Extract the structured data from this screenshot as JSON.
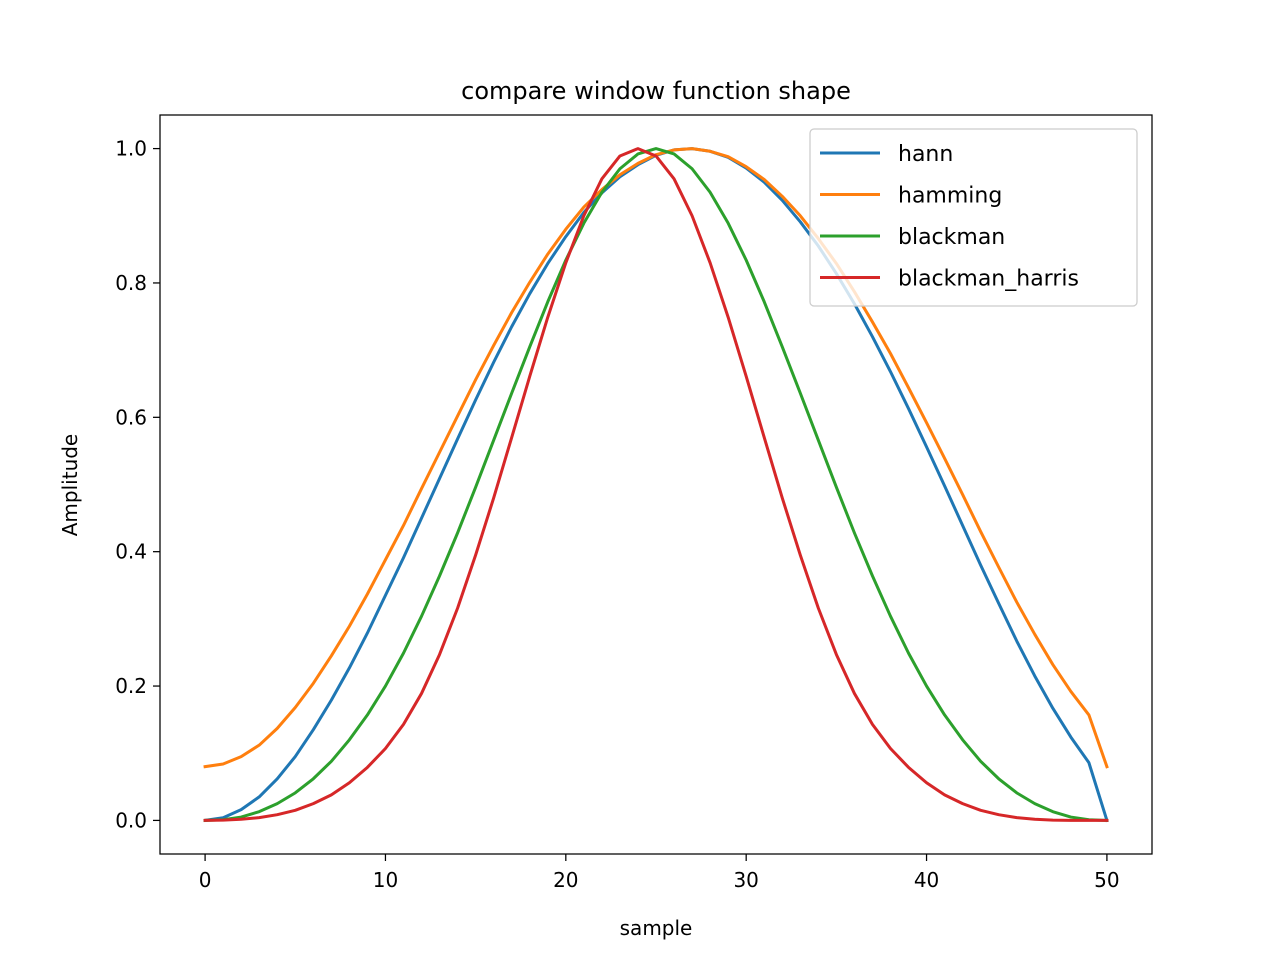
{
  "chart_data": {
    "type": "line",
    "title": "compare window function shape",
    "xlabel": "sample",
    "ylabel": "Amplitude",
    "xlim": [
      -2.5,
      52.5
    ],
    "ylim": [
      -0.05,
      1.05
    ],
    "xticks": [
      0,
      10,
      20,
      30,
      40,
      50
    ],
    "xtick_labels": [
      "0",
      "10",
      "20",
      "30",
      "40",
      "50"
    ],
    "yticks": [
      0.0,
      0.2,
      0.4,
      0.6,
      0.8,
      1.0
    ],
    "ytick_labels": [
      "0.0",
      "0.2",
      "0.4",
      "0.6",
      "0.8",
      "1.0"
    ],
    "grid": false,
    "legend_position": "upper right",
    "x": [
      0,
      1,
      2,
      3,
      4,
      5,
      6,
      7,
      8,
      9,
      10,
      11,
      12,
      13,
      14,
      15,
      16,
      17,
      18,
      19,
      20,
      21,
      22,
      23,
      24,
      25,
      26,
      27,
      28,
      29,
      30,
      31,
      32,
      33,
      34,
      35,
      36,
      37,
      38,
      39,
      40,
      41,
      42,
      43,
      44,
      45,
      46,
      47,
      48,
      49,
      50
    ],
    "series": [
      {
        "name": "hann",
        "color": "#1f77b4",
        "values": [
          0.0,
          0.004,
          0.016,
          0.035,
          0.062,
          0.095,
          0.135,
          0.179,
          0.227,
          0.279,
          0.335,
          0.391,
          0.45,
          0.509,
          0.568,
          0.626,
          0.682,
          0.735,
          0.784,
          0.829,
          0.869,
          0.905,
          0.934,
          0.958,
          0.976,
          0.99,
          0.998,
          1.0,
          0.996,
          0.987,
          0.971,
          0.95,
          0.923,
          0.891,
          0.855,
          0.814,
          0.769,
          0.72,
          0.668,
          0.613,
          0.556,
          0.498,
          0.439,
          0.38,
          0.323,
          0.267,
          0.215,
          0.167,
          0.124,
          0.086,
          0.0
        ]
      },
      {
        "name": "hamming",
        "color": "#ff7f0e",
        "values": [
          0.08,
          0.084,
          0.095,
          0.112,
          0.137,
          0.168,
          0.204,
          0.245,
          0.289,
          0.337,
          0.388,
          0.439,
          0.494,
          0.548,
          0.602,
          0.656,
          0.707,
          0.756,
          0.801,
          0.843,
          0.88,
          0.913,
          0.939,
          0.961,
          0.978,
          0.991,
          0.998,
          1.0,
          0.996,
          0.988,
          0.973,
          0.954,
          0.929,
          0.9,
          0.866,
          0.829,
          0.787,
          0.742,
          0.695,
          0.644,
          0.592,
          0.539,
          0.485,
          0.43,
          0.377,
          0.325,
          0.277,
          0.232,
          0.192,
          0.157,
          0.08
        ]
      },
      {
        "name": "blackman",
        "color": "#2ca02c",
        "values": [
          0.0,
          0.001,
          0.005,
          0.013,
          0.025,
          0.041,
          0.062,
          0.088,
          0.12,
          0.157,
          0.2,
          0.249,
          0.304,
          0.364,
          0.428,
          0.496,
          0.566,
          0.636,
          0.705,
          0.772,
          0.834,
          0.889,
          0.935,
          0.97,
          0.992,
          1.0,
          0.992,
          0.97,
          0.935,
          0.889,
          0.834,
          0.772,
          0.705,
          0.636,
          0.566,
          0.496,
          0.428,
          0.364,
          0.304,
          0.249,
          0.2,
          0.157,
          0.12,
          0.088,
          0.062,
          0.041,
          0.025,
          0.013,
          0.005,
          0.001,
          0.0
        ]
      },
      {
        "name": "blackman_harris",
        "color": "#d62728",
        "values": [
          0.0,
          0.0004,
          0.0017,
          0.0042,
          0.0085,
          0.015,
          0.025,
          0.038,
          0.056,
          0.079,
          0.107,
          0.143,
          0.189,
          0.247,
          0.316,
          0.395,
          0.48,
          0.57,
          0.661,
          0.749,
          0.83,
          0.9,
          0.955,
          0.989,
          1.0,
          0.989,
          0.955,
          0.9,
          0.83,
          0.749,
          0.661,
          0.57,
          0.48,
          0.395,
          0.316,
          0.247,
          0.189,
          0.143,
          0.107,
          0.079,
          0.056,
          0.038,
          0.025,
          0.015,
          0.0085,
          0.0042,
          0.0017,
          0.0004,
          0.0001,
          0.0,
          0.0
        ]
      }
    ]
  }
}
